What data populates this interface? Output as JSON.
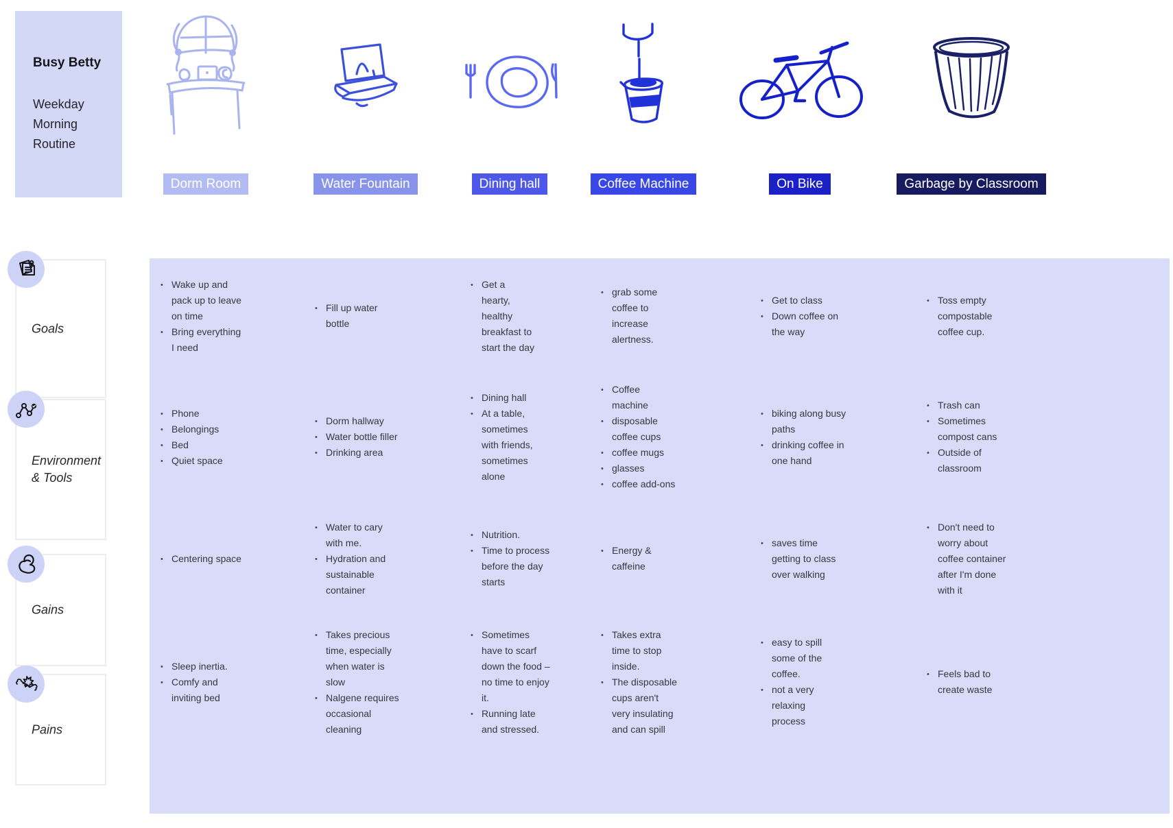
{
  "persona": {
    "name": "Busy Betty",
    "subtitle": "Weekday Morning Routine"
  },
  "columns": [
    {
      "label": "Dorm Room",
      "header_bg": "#b2bcf2",
      "icon": "dorm-room-sketch-icon",
      "icon_color": "#a9b4ef"
    },
    {
      "label": "Water Fountain",
      "header_bg": "#8894ec",
      "icon": "water-fountain-sketch-icon",
      "icon_color": "#3c51da"
    },
    {
      "label": "Dining hall",
      "header_bg": "#4d58e9",
      "icon": "dining-plate-sketch-icon",
      "icon_color": "#5b69f1"
    },
    {
      "label": "Coffee Machine",
      "header_bg": "#3847e5",
      "icon": "coffee-machine-sketch-icon",
      "icon_color": "#2133d8"
    },
    {
      "label": "On Bike",
      "header_bg": "#1b21c6",
      "icon": "bicycle-sketch-icon",
      "icon_color": "#1420c9"
    },
    {
      "label": "Garbage by Classroom",
      "header_bg": "#161b60",
      "icon": "garbage-can-sketch-icon",
      "icon_color": "#1a2166"
    }
  ],
  "rows": [
    {
      "label": "Goals",
      "icon": "notes-icon"
    },
    {
      "label": "Environment & Tools",
      "icon": "network-path-icon"
    },
    {
      "label": "Gains",
      "icon": "bicep-icon"
    },
    {
      "label": "Pains",
      "icon": "broken-bone-icon"
    }
  ],
  "cells": {
    "goals": [
      [
        "Wake up and pack up to leave on time",
        "Bring everything I need"
      ],
      [
        "Fill up water bottle"
      ],
      [
        "Get a hearty, healthy breakfast to start the day"
      ],
      [
        "grab some coffee to increase alertness."
      ],
      [
        "Get to class",
        "Down coffee on the way"
      ],
      [
        "Toss empty compostable coffee cup."
      ]
    ],
    "environment_tools": [
      [
        "Phone",
        "Belongings",
        "Bed",
        "Quiet space"
      ],
      [
        "Dorm hallway",
        "Water bottle filler",
        "Drinking area"
      ],
      [
        "Dining hall",
        "At a table, sometimes with friends, sometimes alone"
      ],
      [
        "Coffee machine",
        "disposable coffee cups",
        "coffee mugs",
        "glasses",
        "coffee add-ons"
      ],
      [
        "biking along busy paths",
        "drinking coffee in one hand"
      ],
      [
        "Trash can",
        "Sometimes compost cans",
        "Outside of classroom"
      ]
    ],
    "gains": [
      [
        "Centering space"
      ],
      [
        "Water to cary with me.",
        "Hydration and sustainable container"
      ],
      [
        "Nutrition.",
        "Time to process before the day starts"
      ],
      [
        "Energy & caffeine"
      ],
      [
        "saves time getting to class over walking"
      ],
      [
        "Don't need to worry about coffee container after I'm done with it"
      ]
    ],
    "pains": [
      [
        "Sleep inertia.",
        "Comfy and inviting bed"
      ],
      [
        "Takes precious time, especially when water is slow",
        "Nalgene requires occasional cleaning"
      ],
      [
        "Sometimes have to scarf down the food – no time to enjoy it.",
        "Running late and stressed."
      ],
      [
        "Takes extra time to stop inside.",
        "The disposable cups aren't very insulating and can spill"
      ],
      [
        "easy to spill some of the coffee.",
        "not a very relaxing process"
      ],
      [
        "Feels bad to create waste"
      ]
    ]
  },
  "theme": {
    "board_bg": "#d8dcf8",
    "persona_bg": "#d3d8f7",
    "badge_bg": "#ccd3f6",
    "text": "#37383f"
  }
}
